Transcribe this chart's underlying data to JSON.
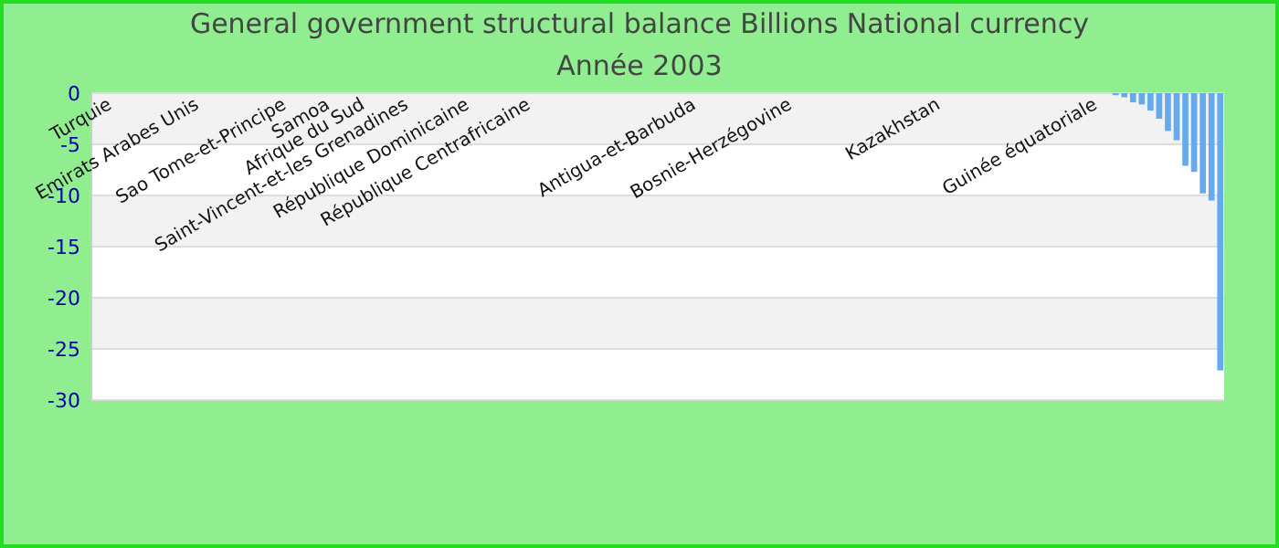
{
  "chart_data": {
    "type": "bar",
    "title": "General government structural balance Billions National currency",
    "subtitle": "Année 2003",
    "categories": [
      null,
      null,
      "Turquie",
      null,
      null,
      null,
      null,
      null,
      null,
      null,
      null,
      null,
      "Emirats Arabes Unis",
      null,
      null,
      null,
      null,
      null,
      null,
      null,
      null,
      null,
      "Sao Tome-et-Principe",
      null,
      null,
      null,
      null,
      "Samoa",
      null,
      null,
      null,
      "Afrique du Sud",
      null,
      null,
      null,
      null,
      "Saint-Vincent-et-les Grenadines",
      null,
      null,
      null,
      null,
      null,
      null,
      "République Dominicaine",
      null,
      null,
      null,
      null,
      null,
      null,
      "République Centrafricaine",
      null,
      null,
      null,
      null,
      null,
      null,
      null,
      null,
      null,
      null,
      null,
      null,
      null,
      null,
      null,
      null,
      null,
      null,
      "Antigua-et-Barbuda",
      null,
      null,
      null,
      null,
      null,
      null,
      null,
      null,
      null,
      null,
      "Bosnie-Herzégovine",
      null,
      null,
      null,
      null,
      null,
      null,
      null,
      null,
      null,
      null,
      null,
      null,
      null,
      null,
      null,
      null,
      "Kazakhstan",
      null,
      null,
      null,
      null,
      null,
      null,
      null,
      null,
      null,
      null,
      null,
      null,
      null,
      null,
      null,
      null,
      null,
      "Guinée équatoriale",
      null,
      null,
      null,
      null,
      null,
      null,
      null,
      null,
      null,
      null,
      null,
      null,
      null,
      null
    ],
    "values": [
      0,
      0,
      0,
      0,
      0,
      0,
      0,
      0,
      0,
      0,
      0,
      0,
      0,
      0,
      0,
      0,
      0,
      0,
      0,
      0,
      0,
      0,
      0,
      0,
      0,
      0,
      0,
      0,
      0,
      0,
      0,
      0,
      0,
      0,
      0,
      0,
      0,
      0,
      0,
      0,
      0,
      0,
      0,
      0,
      0,
      0,
      0,
      0,
      0,
      0,
      0,
      0,
      0,
      0,
      0,
      0,
      0,
      0,
      0,
      0,
      0,
      0,
      0,
      0,
      0,
      0,
      0,
      0,
      0,
      0,
      0,
      0,
      0,
      0,
      0,
      0,
      0,
      0,
      0,
      0,
      0,
      0,
      0,
      0,
      0,
      0,
      0,
      0,
      0,
      0,
      0,
      0,
      0,
      0,
      0,
      0,
      0,
      0,
      0,
      0,
      0,
      0,
      0,
      0,
      0,
      0,
      0,
      0,
      0,
      0,
      0,
      0,
      0,
      0,
      0,
      0,
      0,
      -0.2,
      -0.4,
      -0.9,
      -1.1,
      -1.7,
      -2.5,
      -3.7,
      -4.6,
      -7.1,
      -7.7,
      -9.8,
      -10.5,
      -27.1
    ],
    "color": "#66aaee",
    "ylim": [
      -30,
      0
    ],
    "yticks": [
      0,
      -5,
      -10,
      -15,
      -20,
      -25,
      -30
    ],
    "grid": true
  }
}
